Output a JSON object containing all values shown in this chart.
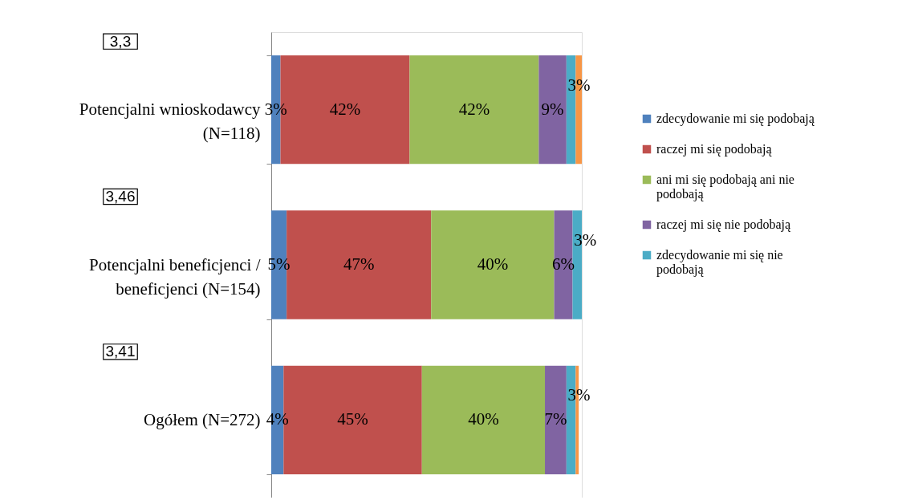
{
  "chart_data": {
    "type": "bar",
    "orientation": "horizontal",
    "stacked": true,
    "legend": "right",
    "categories": [
      "Potencjalni wnioskodawcy (N=118)",
      "Potencjalni beneficjenci / beneficjenci (N=154)",
      "Ogółem (N=272)"
    ],
    "annotations": [
      "3,3",
      "3,46",
      "3,41"
    ],
    "series": [
      {
        "name": "zdecydowanie mi się podobają",
        "color": "#4f81bd",
        "values": [
          3,
          5,
          4
        ],
        "value_labels": [
          "3%",
          "5%",
          "4%"
        ]
      },
      {
        "name": "raczej mi się podobają",
        "color": "#c0504d",
        "values": [
          42,
          47,
          45
        ],
        "value_labels": [
          "42%",
          "47%",
          "45%"
        ]
      },
      {
        "name": "ani mi się podobają ani nie podobają",
        "color": "#9bbb59",
        "values": [
          42,
          40,
          40
        ],
        "value_labels": [
          "42%",
          "40%",
          "40%"
        ]
      },
      {
        "name": "raczej mi się nie podobają",
        "color": "#8064a2",
        "values": [
          9,
          6,
          7
        ],
        "value_labels": [
          "9%",
          "6%",
          "7%"
        ]
      },
      {
        "name": "zdecydowanie mi się nie podobają",
        "color": "#4bacc6",
        "values": [
          3,
          3,
          3
        ],
        "value_labels": [
          "3%",
          "3%",
          "3%"
        ]
      },
      {
        "color": "#f79646",
        "values": [
          2,
          0,
          1
        ],
        "value_labels": [
          null,
          null,
          null
        ]
      }
    ]
  }
}
